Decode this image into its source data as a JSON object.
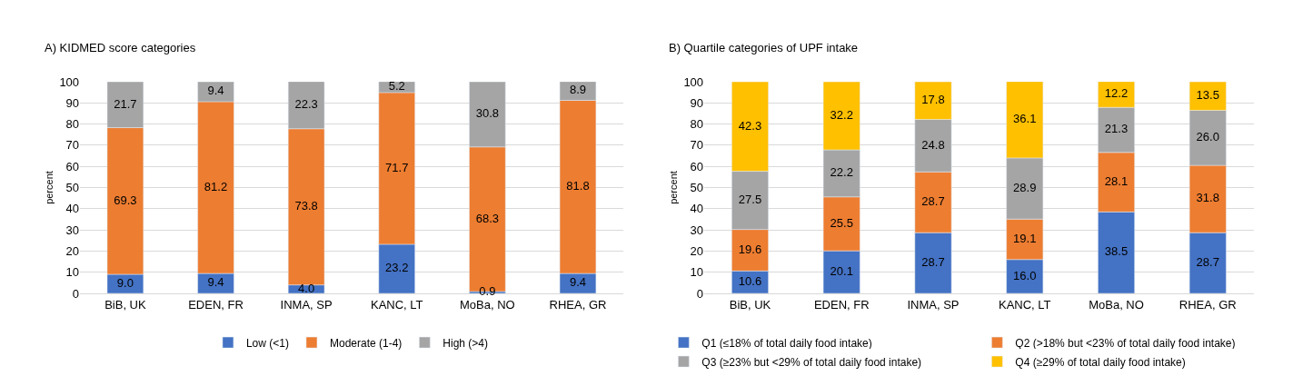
{
  "chart_data": [
    {
      "type": "bar",
      "title": "A) KIDMED score categories",
      "ylabel": "percent",
      "stacked": true,
      "grid": "y",
      "legend": "bottom",
      "categories": [
        "BiB, UK",
        "EDEN, FR",
        "INMA, SP",
        "KANC, LT",
        "MoBa, NO",
        "RHEA, GR"
      ],
      "ylim": [
        0,
        100
      ],
      "yticks": [
        0,
        10,
        20,
        30,
        40,
        50,
        60,
        70,
        80,
        90,
        100
      ],
      "series": [
        {
          "name": "Low (<1)",
          "color": "#4472c4",
          "values": [
            9.0,
            9.4,
            4.0,
            23.2,
            0.9,
            9.4
          ],
          "value_labels": [
            "9.0",
            "9.4",
            "4.0",
            "23.2",
            "0.9",
            "9.4"
          ]
        },
        {
          "name": "Moderate (1-4)",
          "color": "#ed7d31",
          "values": [
            69.3,
            81.2,
            73.8,
            71.7,
            68.3,
            81.8
          ],
          "value_labels": [
            "69.3",
            "81.2",
            "73.8",
            "71.7",
            "68.3",
            "81.8"
          ]
        },
        {
          "name": "High (>4)",
          "color": "#a5a5a5",
          "values": [
            21.7,
            9.4,
            22.3,
            5.2,
            30.8,
            8.9
          ],
          "value_labels": [
            "21.7",
            "9.4",
            "22.3",
            "5.2",
            "30.8",
            "8.9"
          ]
        }
      ]
    },
    {
      "type": "bar",
      "title": "B) Quartile categories of UPF intake",
      "ylabel": "percent",
      "stacked": true,
      "grid": "y",
      "legend": "bottom",
      "categories": [
        "BiB, UK",
        "EDEN, FR",
        "INMA, SP",
        "KANC, LT",
        "MoBa, NO",
        "RHEA, GR"
      ],
      "ylim": [
        0,
        100
      ],
      "yticks": [
        0,
        10,
        20,
        30,
        40,
        50,
        60,
        70,
        80,
        90,
        100
      ],
      "series": [
        {
          "name": "Q1 (≤18% of total daily food intake)",
          "color": "#4472c4",
          "values": [
            10.6,
            20.1,
            28.7,
            16.0,
            38.5,
            28.7
          ],
          "value_labels": [
            "10.6",
            "20.1",
            "28.7",
            "16.0",
            "38.5",
            "28.7"
          ]
        },
        {
          "name": "Q2 (>18% but <23% of total daily food intake)",
          "color": "#ed7d31",
          "values": [
            19.6,
            25.5,
            28.7,
            19.1,
            28.1,
            31.8
          ],
          "value_labels": [
            "19.6",
            "25.5",
            "28.7",
            "19.1",
            "28.1",
            "31.8"
          ]
        },
        {
          "name": "Q3 (≥23% but <29% of total daily food intake)",
          "color": "#a5a5a5",
          "values": [
            27.5,
            22.2,
            24.8,
            28.9,
            21.3,
            26.0
          ],
          "value_labels": [
            "27.5",
            "22.2",
            "24.8",
            "28.9",
            "21.3",
            "26.0"
          ]
        },
        {
          "name": "Q4 (≥29% of total daily food intake)",
          "color": "#ffc000",
          "values": [
            42.3,
            32.2,
            17.8,
            36.1,
            12.2,
            13.5
          ],
          "value_labels": [
            "42.3",
            "32.2",
            "17.8",
            "36.1",
            "12.2",
            "13.5"
          ]
        }
      ]
    }
  ]
}
